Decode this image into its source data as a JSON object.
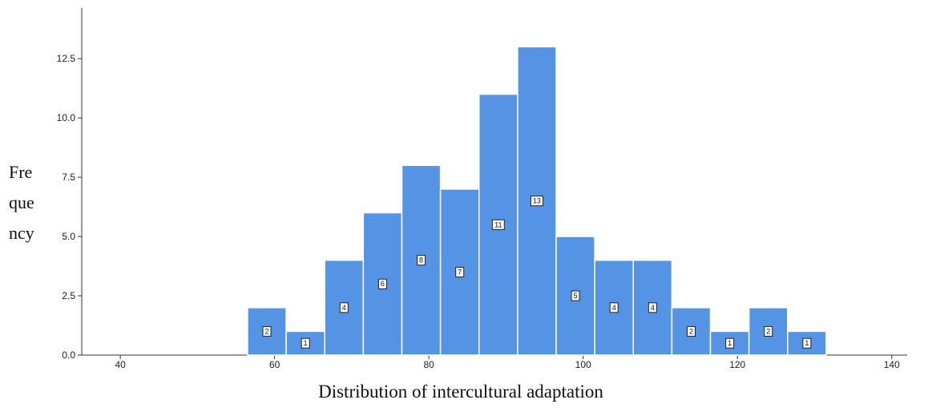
{
  "chart_data": {
    "type": "bar",
    "subtype": "histogram",
    "xlabel": "Distribution of intercultural adaptation",
    "ylabel_lines": [
      "Fre",
      "que",
      "ncy"
    ],
    "xlim": [
      35,
      142
    ],
    "ylim": [
      0,
      14.5
    ],
    "x_ticks": [
      40,
      60,
      80,
      100,
      120,
      140
    ],
    "y_ticks": [
      "0.0",
      "2.5",
      "5.0",
      "7.5",
      "10.0",
      "12.5"
    ],
    "y_tick_values": [
      0,
      2.5,
      5,
      7.5,
      10,
      12.5
    ],
    "bin_width": 5,
    "bins": [
      {
        "start": 56.5,
        "end": 61.5,
        "count": 2
      },
      {
        "start": 61.5,
        "end": 66.5,
        "count": 1
      },
      {
        "start": 66.5,
        "end": 71.5,
        "count": 4
      },
      {
        "start": 71.5,
        "end": 76.5,
        "count": 6
      },
      {
        "start": 76.5,
        "end": 81.5,
        "count": 8
      },
      {
        "start": 81.5,
        "end": 86.5,
        "count": 7
      },
      {
        "start": 86.5,
        "end": 91.5,
        "count": 11
      },
      {
        "start": 91.5,
        "end": 96.5,
        "count": 13
      },
      {
        "start": 96.5,
        "end": 101.5,
        "count": 5
      },
      {
        "start": 101.5,
        "end": 106.5,
        "count": 4
      },
      {
        "start": 106.5,
        "end": 111.5,
        "count": 4
      },
      {
        "start": 111.5,
        "end": 116.5,
        "count": 2
      },
      {
        "start": 116.5,
        "end": 121.5,
        "count": 1
      },
      {
        "start": 121.5,
        "end": 126.5,
        "count": 2
      },
      {
        "start": 126.5,
        "end": 131.5,
        "count": 1
      }
    ],
    "colors": {
      "bar": "#5594e4",
      "axis": "#333333"
    },
    "grid": false,
    "data_labels": true
  }
}
